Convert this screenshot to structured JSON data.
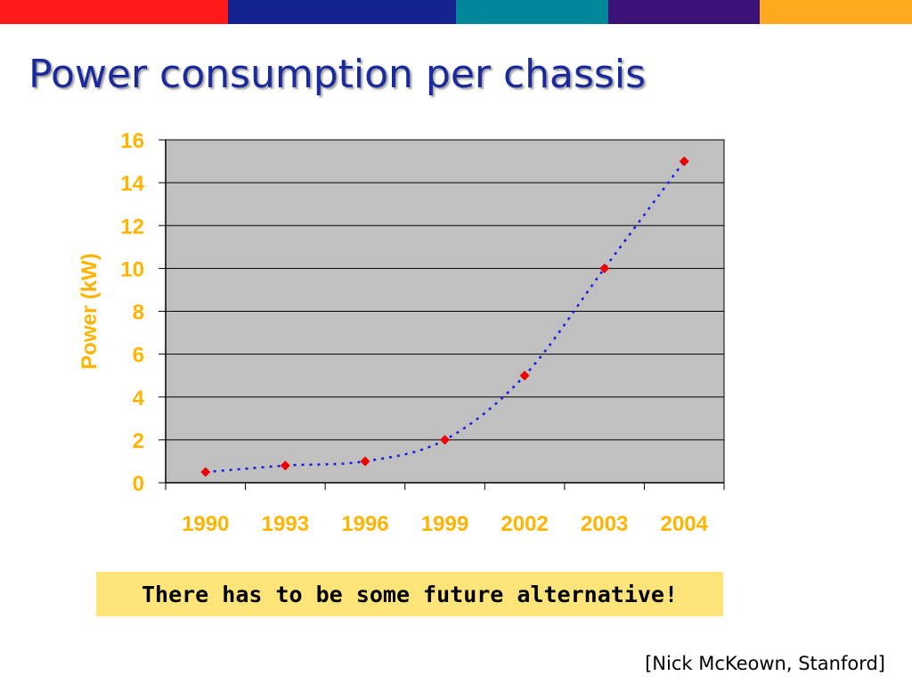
{
  "slide": {
    "title": "Power consumption per chassis",
    "callout": "There has to be some future alternative!",
    "citation": "[Nick McKeown, Stanford]",
    "top_bar_colors": [
      "#ff1a1a",
      "#13238f",
      "#00889a",
      "#3c1278",
      "#ffaa1e"
    ]
  },
  "chart_data": {
    "type": "line",
    "title": "",
    "xlabel": "",
    "ylabel": "Power (kW)",
    "categories": [
      "1990",
      "1993",
      "1996",
      "1999",
      "2002",
      "2003",
      "2004"
    ],
    "series": [
      {
        "values": [
          0.5,
          0.8,
          1.0,
          2.0,
          5.0,
          10.0,
          15.0
        ]
      }
    ],
    "ylim": [
      0,
      16
    ],
    "yticks": [
      0,
      2,
      4,
      6,
      8,
      10,
      12,
      14,
      16
    ],
    "grid": true,
    "line_style": "dotted",
    "marker": "diamond",
    "colors": {
      "line": "#1a1ae6",
      "marker": "#ee0000",
      "plot_background": "#c0c0c0",
      "axis_text": "#ffb400"
    }
  }
}
